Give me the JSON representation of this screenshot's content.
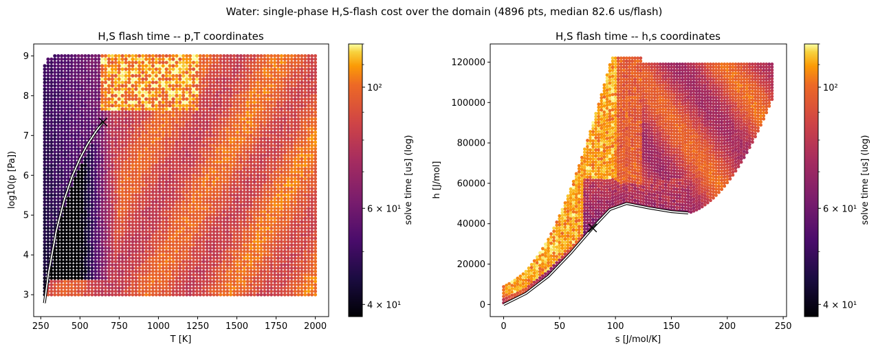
{
  "figure": {
    "suptitle": "Water: single-phase H,S-flash cost over the domain (4896 pts, median 82.6 us/flash)"
  },
  "chart_data": [
    {
      "type": "scatter",
      "title": "H,S flash time -- p,T coordinates",
      "xlabel": "T [K]",
      "ylabel": "log10(p [Pa])",
      "xlim": [
        205,
        2085
      ],
      "ylim": [
        2.45,
        9.3
      ],
      "xticks": [
        250,
        500,
        750,
        1000,
        1250,
        1500,
        1750,
        2000
      ],
      "yticks": [
        3,
        4,
        5,
        6,
        7,
        8,
        9
      ],
      "grid": false,
      "colormap": "inferno",
      "critical_point": {
        "x": 647.1,
        "y": 7.34
      },
      "saturation_curve": {
        "x": [
          273.16,
          300,
          350,
          400,
          450,
          500,
          550,
          600,
          647.1
        ],
        "y": [
          2.79,
          3.55,
          4.62,
          5.39,
          5.97,
          6.42,
          6.79,
          7.09,
          7.34
        ]
      },
      "colorbar": {
        "label": "solve time [us] (log)",
        "scale": "log",
        "range": [
          38,
          120
        ],
        "ticks": [
          {
            "value": 40,
            "label": "4 × 10¹"
          },
          {
            "value": 60,
            "label": "6 × 10¹"
          },
          {
            "value": 100,
            "label": "10²"
          }
        ]
      }
    },
    {
      "type": "scatter",
      "title": "H,S flash time -- h,s coordinates",
      "xlabel": "s [J/mol/K]",
      "ylabel": "h [J/mol]",
      "xlim": [
        -12,
        253
      ],
      "ylim": [
        -6000,
        129000
      ],
      "xticks": [
        0,
        50,
        100,
        150,
        200,
        250
      ],
      "yticks": [
        0,
        20000,
        40000,
        60000,
        80000,
        100000,
        120000
      ],
      "grid": false,
      "colormap": "inferno",
      "critical_point": {
        "x": 79.5,
        "y": 37900
      },
      "saturation_curve": {
        "x": [
          0,
          20,
          40,
          60,
          79.5,
          95,
          110,
          130,
          150,
          165
        ],
        "y": [
          0,
          5500,
          14000,
          25500,
          37900,
          47000,
          50000,
          47800,
          46000,
          45300
        ]
      },
      "colorbar": {
        "label": "solve time [us] (log)",
        "scale": "log",
        "range": [
          38,
          120
        ],
        "ticks": [
          {
            "value": 40,
            "label": "4 × 10¹"
          },
          {
            "value": 60,
            "label": "6 × 10¹"
          },
          {
            "value": 100,
            "label": "10²"
          }
        ]
      }
    }
  ]
}
